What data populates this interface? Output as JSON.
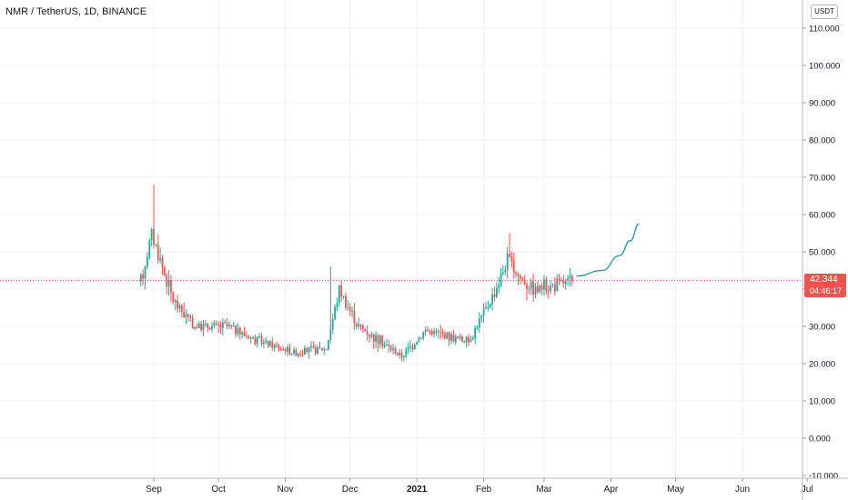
{
  "header": {
    "title": "NMR / TetherUS, 1D, BINANCE",
    "currency_button": "USDT"
  },
  "last_price": {
    "price": "42.344",
    "countdown": "04:46:17"
  },
  "colors": {
    "up": "#26a69a",
    "down": "#ef5350",
    "projection": "#2196a3",
    "grid": "#eef0f3",
    "axis_text": "#131722"
  },
  "chart_data": {
    "type": "candlestick",
    "title": "NMR / TetherUS, 1D, BINANCE",
    "x_labels": [
      "Sep",
      "Oct",
      "Nov",
      "Dec",
      "2021",
      "Feb",
      "Mar",
      "Apr",
      "May",
      "Jun",
      "Jul"
    ],
    "y_labels": [
      "110.000",
      "100.000",
      "90.000",
      "80.000",
      "70.000",
      "60.000",
      "50.000",
      "40.000",
      "30.000",
      "20.000",
      "10.000",
      "0.000",
      "-10.000"
    ],
    "ylim": [
      -10,
      113
    ],
    "grid": true,
    "last_price": 42.344,
    "key_points": [
      {
        "date": "2020-08-26",
        "close": 42
      },
      {
        "date": "2020-08-31",
        "close": 55
      },
      {
        "date": "2020-09-01",
        "high": 68
      },
      {
        "date": "2020-09-10",
        "close": 37
      },
      {
        "date": "2020-09-20",
        "close": 30
      },
      {
        "date": "2020-10-05",
        "close": 30
      },
      {
        "date": "2020-10-20",
        "close": 26
      },
      {
        "date": "2020-11-05",
        "close": 23
      },
      {
        "date": "2020-11-20",
        "close": 24
      },
      {
        "date": "2020-11-22",
        "high": 46
      },
      {
        "date": "2020-11-26",
        "close": 40
      },
      {
        "date": "2020-12-05",
        "close": 30
      },
      {
        "date": "2020-12-25",
        "close": 22
      },
      {
        "date": "2021-01-05",
        "close": 29
      },
      {
        "date": "2021-01-25",
        "close": 26
      },
      {
        "date": "2021-02-05",
        "close": 38
      },
      {
        "date": "2021-02-12",
        "close": 48
      },
      {
        "date": "2021-02-13",
        "high": 55
      },
      {
        "date": "2021-02-18",
        "close": 43
      },
      {
        "date": "2021-02-25",
        "close": 40
      },
      {
        "date": "2021-03-05",
        "close": 41
      },
      {
        "date": "2021-03-14",
        "close": 42.3
      }
    ],
    "projection": [
      {
        "date": "2021-03-16",
        "value": 43.5
      },
      {
        "date": "2021-03-28",
        "value": 45
      },
      {
        "date": "2021-04-05",
        "value": 49
      },
      {
        "date": "2021-04-10",
        "value": 53
      },
      {
        "date": "2021-04-14",
        "value": 57.5
      }
    ]
  }
}
